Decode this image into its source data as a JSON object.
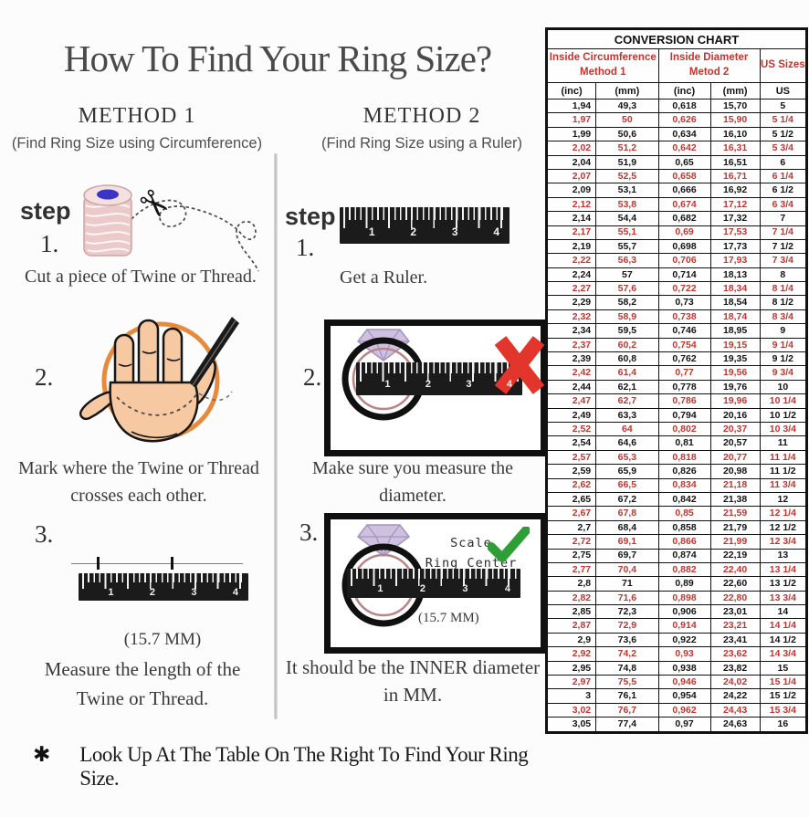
{
  "page": {
    "title": "How To Find Your Ring Size?"
  },
  "footer": {
    "symbol": "✱",
    "text": "Look Up At The Table On The Right To Find Your Ring Size."
  },
  "method1": {
    "heading": "METHOD 1",
    "subheading": "(Find Ring Size using Circumference)",
    "step_label": "step",
    "step1_num": "1.",
    "step1_text": "Cut a piece of  Twine or Thread.",
    "step2_num": "2.",
    "step2_text": "Mark where the Twine or Thread\ncrosses each other.",
    "step3_num": "3.",
    "step3_measure": "(15.7 MM)",
    "step3_text": "Measure the length of the\nTwine or Thread."
  },
  "method2": {
    "heading": "METHOD 2",
    "subheading": "(Find Ring Size using a Ruler)",
    "step_label": "step",
    "step1_num": "1.",
    "step1_text": "Get a Ruler.",
    "step2_num": "2.",
    "step2_text": "Make sure you measure the diameter.",
    "step3_num": "3.",
    "step3_scale_note": "Scale\nRing Center",
    "step3_measure": "(15.7 MM)",
    "step3_text": "It should be the INNER diameter\nin MM."
  },
  "ruler": {
    "numbers": [
      "1",
      "2",
      "3",
      "4"
    ]
  },
  "chart": {
    "title": "CONVERSION CHART",
    "group1": "Inside Circumference\nMethod 1",
    "group2": "Inside Diameter\nMetod 2",
    "group3": "US Sizes",
    "columns": [
      "(inc)",
      "(mm)",
      "(inc)",
      "(mm)",
      "US"
    ],
    "rows": [
      [
        "1,94",
        "49,3",
        "0,618",
        "15,70",
        "5"
      ],
      [
        "1,97",
        "50",
        "0,626",
        "15,90",
        "5 1/4"
      ],
      [
        "1,99",
        "50,6",
        "0,634",
        "16,10",
        "5 1/2"
      ],
      [
        "2,02",
        "51,2",
        "0,642",
        "16,31",
        "5 3/4"
      ],
      [
        "2,04",
        "51,9",
        "0,65",
        "16,51",
        "6"
      ],
      [
        "2,07",
        "52,5",
        "0,658",
        "16,71",
        "6 1/4"
      ],
      [
        "2,09",
        "53,1",
        "0,666",
        "16,92",
        "6 1/2"
      ],
      [
        "2,12",
        "53,8",
        "0,674",
        "17,12",
        "6 3/4"
      ],
      [
        "2,14",
        "54,4",
        "0,682",
        "17,32",
        "7"
      ],
      [
        "2,17",
        "55,1",
        "0,69",
        "17,53",
        "7 1/4"
      ],
      [
        "2,19",
        "55,7",
        "0,698",
        "17,73",
        "7 1/2"
      ],
      [
        "2,22",
        "56,3",
        "0,706",
        "17,93",
        "7 3/4"
      ],
      [
        "2,24",
        "57",
        "0,714",
        "18,13",
        "8"
      ],
      [
        "2,27",
        "57,6",
        "0,722",
        "18,34",
        "8 1/4"
      ],
      [
        "2,29",
        "58,2",
        "0,73",
        "18,54",
        "8 1/2"
      ],
      [
        "2,32",
        "58,9",
        "0,738",
        "18,74",
        "8 3/4"
      ],
      [
        "2,34",
        "59,5",
        "0,746",
        "18,95",
        "9"
      ],
      [
        "2,37",
        "60,2",
        "0,754",
        "19,15",
        "9 1/4"
      ],
      [
        "2,39",
        "60,8",
        "0,762",
        "19,35",
        "9 1/2"
      ],
      [
        "2,42",
        "61,4",
        "0,77",
        "19,56",
        "9 3/4"
      ],
      [
        "2,44",
        "62,1",
        "0,778",
        "19,76",
        "10"
      ],
      [
        "2,47",
        "62,7",
        "0,786",
        "19,96",
        "10 1/4"
      ],
      [
        "2,49",
        "63,3",
        "0,794",
        "20,16",
        "10 1/2"
      ],
      [
        "2,52",
        "64",
        "0,802",
        "20,37",
        "10 3/4"
      ],
      [
        "2,54",
        "64,6",
        "0,81",
        "20,57",
        "11"
      ],
      [
        "2,57",
        "65,3",
        "0,818",
        "20,77",
        "11 1/4"
      ],
      [
        "2,59",
        "65,9",
        "0,826",
        "20,98",
        "11 1/2"
      ],
      [
        "2,62",
        "66,5",
        "0,834",
        "21,18",
        "11 3/4"
      ],
      [
        "2,65",
        "67,2",
        "0,842",
        "21,38",
        "12"
      ],
      [
        "2,67",
        "67,8",
        "0,85",
        "21,59",
        "12 1/4"
      ],
      [
        "2,7",
        "68,4",
        "0,858",
        "21,79",
        "12 1/2"
      ],
      [
        "2,72",
        "69,1",
        "0,866",
        "21,99",
        "12 3/4"
      ],
      [
        "2,75",
        "69,7",
        "0,874",
        "22,19",
        "13"
      ],
      [
        "2,77",
        "70,4",
        "0,882",
        "22,40",
        "13 1/4"
      ],
      [
        "2,8",
        "71",
        "0,89",
        "22,60",
        "13 1/2"
      ],
      [
        "2,82",
        "71,6",
        "0,898",
        "22,80",
        "13 3/4"
      ],
      [
        "2,85",
        "72,3",
        "0,906",
        "23,01",
        "14"
      ],
      [
        "2,87",
        "72,9",
        "0,914",
        "23,21",
        "14 1/4"
      ],
      [
        "2,9",
        "73,6",
        "0,922",
        "23,41",
        "14 1/2"
      ],
      [
        "2,92",
        "74,2",
        "0,93",
        "23,62",
        "14 3/4"
      ],
      [
        "2,95",
        "74,8",
        "0,938",
        "23,82",
        "15"
      ],
      [
        "2,97",
        "75,5",
        "0,946",
        "24,02",
        "15 1/4"
      ],
      [
        "3",
        "76,1",
        "0,954",
        "24,22",
        "15 1/2"
      ],
      [
        "3,02",
        "76,7",
        "0,962",
        "24,43",
        "15 3/4"
      ],
      [
        "3,05",
        "77,4",
        "0,97",
        "24,63",
        "16"
      ]
    ]
  },
  "colors": {
    "accent_red": "#c23630",
    "x_mark_red": "#e2352b",
    "check_green": "#2f9e36",
    "circle_orange": "#e78a3c",
    "twine_pink": "#eccaca",
    "diamond_purple": "#cfc0e0"
  }
}
